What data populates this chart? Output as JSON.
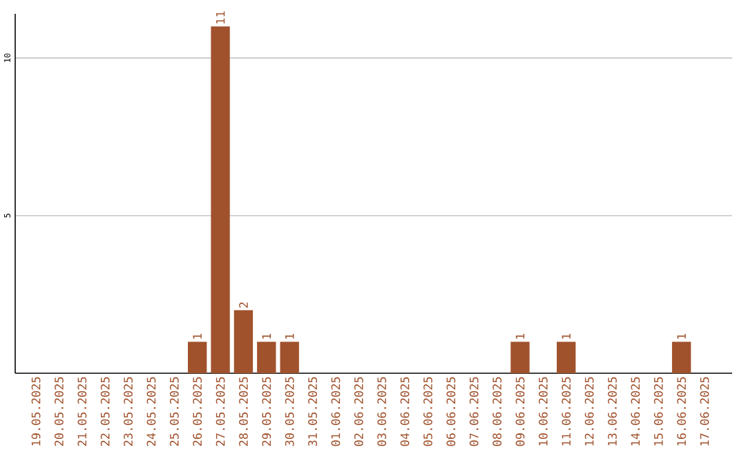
{
  "chart_data": {
    "type": "bar",
    "categories": [
      "19.05.2025",
      "20.05.2025",
      "21.05.2025",
      "22.05.2025",
      "23.05.2025",
      "24.05.2025",
      "25.05.2025",
      "26.05.2025",
      "27.05.2025",
      "28.05.2025",
      "29.05.2025",
      "30.05.2025",
      "31.05.2025",
      "01.06.2025",
      "02.06.2025",
      "03.06.2025",
      "04.06.2025",
      "05.06.2025",
      "06.06.2025",
      "07.06.2025",
      "08.06.2025",
      "09.06.2025",
      "10.06.2025",
      "11.06.2025",
      "12.06.2025",
      "13.06.2025",
      "14.06.2025",
      "15.06.2025",
      "16.06.2025",
      "17.06.2025"
    ],
    "values": [
      0,
      0,
      0,
      0,
      0,
      0,
      0,
      1,
      11,
      2,
      1,
      1,
      0,
      0,
      0,
      0,
      0,
      0,
      0,
      0,
      0,
      1,
      0,
      1,
      0,
      0,
      0,
      0,
      1,
      0
    ],
    "value_labels": [
      null,
      null,
      null,
      null,
      null,
      null,
      null,
      "1",
      "11",
      "2",
      "1",
      "1",
      null,
      null,
      null,
      null,
      null,
      null,
      null,
      null,
      null,
      "1",
      null,
      "1",
      null,
      null,
      null,
      null,
      "1",
      null
    ],
    "color": "#a0522d",
    "ylim": [
      0,
      11.4
    ],
    "yticks": [
      5,
      10
    ],
    "grid": "y"
  }
}
